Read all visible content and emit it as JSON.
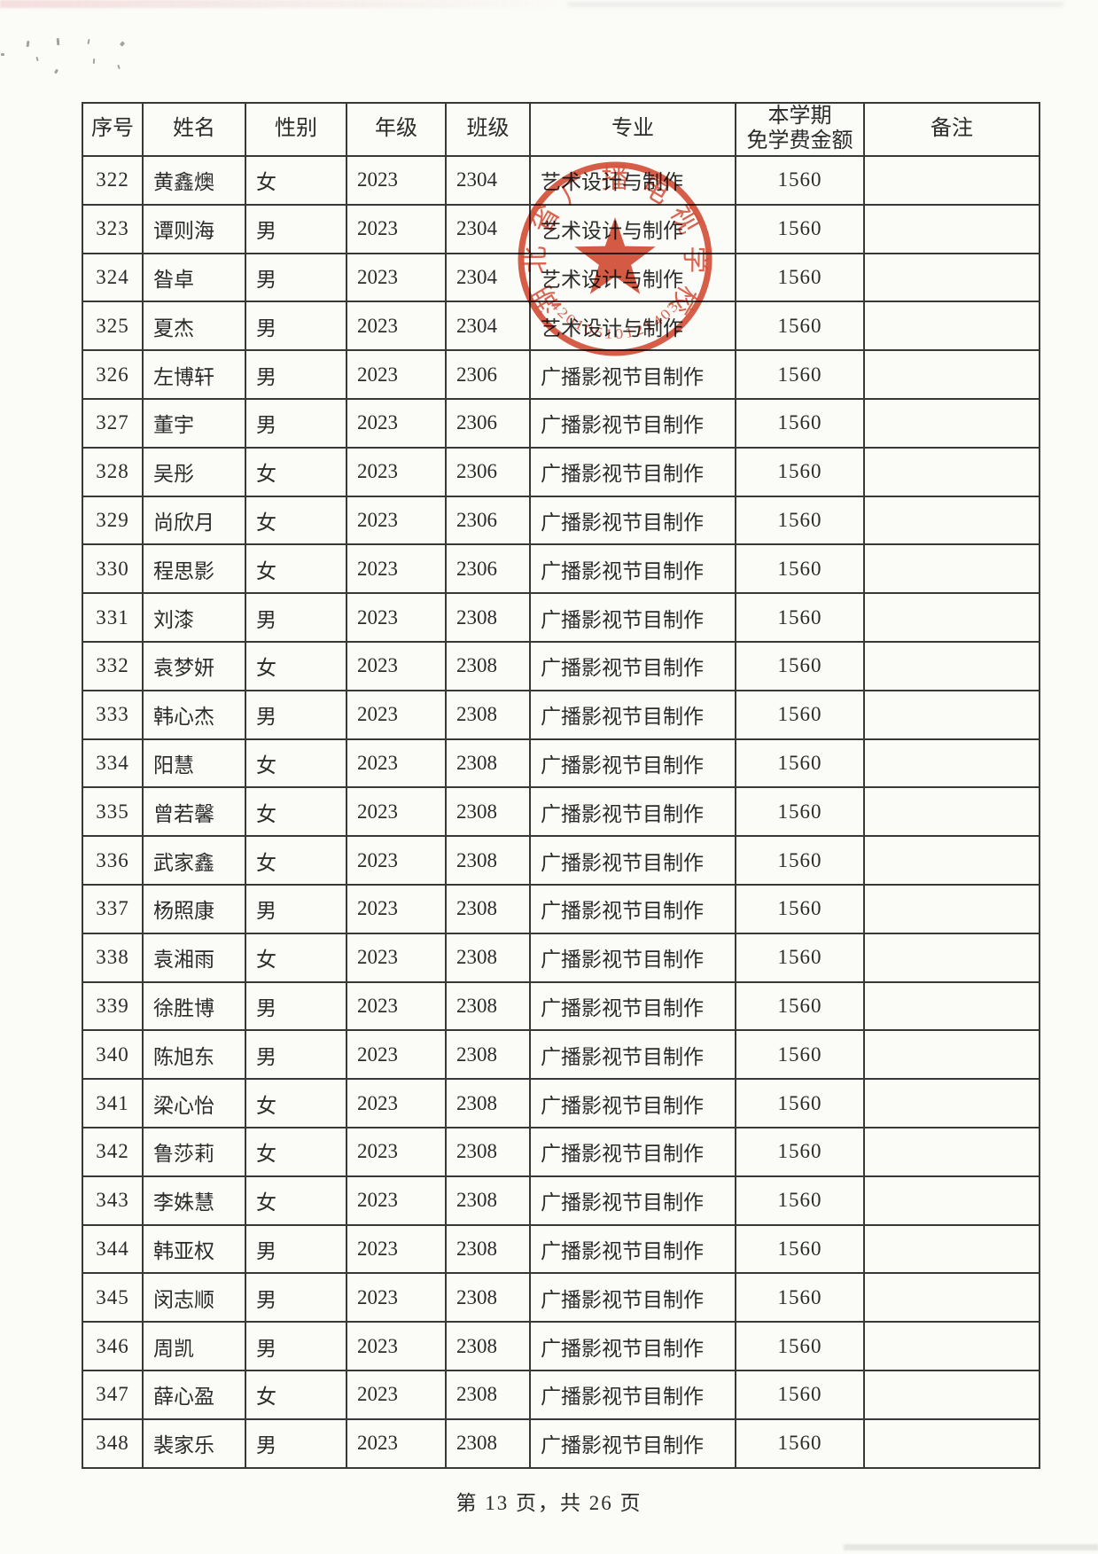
{
  "page": {
    "footer": "第 13 页，共 26 页"
  },
  "table": {
    "columns": {
      "no": "序号",
      "name": "姓名",
      "gender": "性别",
      "grade": "年级",
      "class": "班级",
      "major": "专业",
      "amount_line1": "本学期",
      "amount_line2": "免学费金额",
      "remark": "备注"
    },
    "rows": [
      {
        "no": "322",
        "name": "黄鑫燠",
        "gender": "女",
        "grade": "2023",
        "class": "2304",
        "major": "艺术设计与制作",
        "amount": "1560",
        "remark": ""
      },
      {
        "no": "323",
        "name": "谭则海",
        "gender": "男",
        "grade": "2023",
        "class": "2304",
        "major": "艺术设计与制作",
        "amount": "1560",
        "remark": ""
      },
      {
        "no": "324",
        "name": "昝卓",
        "gender": "男",
        "grade": "2023",
        "class": "2304",
        "major": "艺术设计与制作",
        "amount": "1560",
        "remark": ""
      },
      {
        "no": "325",
        "name": "夏杰",
        "gender": "男",
        "grade": "2023",
        "class": "2304",
        "major": "艺术设计与制作",
        "amount": "1560",
        "remark": ""
      },
      {
        "no": "326",
        "name": "左博轩",
        "gender": "男",
        "grade": "2023",
        "class": "2306",
        "major": "广播影视节目制作",
        "amount": "1560",
        "remark": ""
      },
      {
        "no": "327",
        "name": "董宇",
        "gender": "男",
        "grade": "2023",
        "class": "2306",
        "major": "广播影视节目制作",
        "amount": "1560",
        "remark": ""
      },
      {
        "no": "328",
        "name": "吴彤",
        "gender": "女",
        "grade": "2023",
        "class": "2306",
        "major": "广播影视节目制作",
        "amount": "1560",
        "remark": ""
      },
      {
        "no": "329",
        "name": "尚欣月",
        "gender": "女",
        "grade": "2023",
        "class": "2306",
        "major": "广播影视节目制作",
        "amount": "1560",
        "remark": ""
      },
      {
        "no": "330",
        "name": "程思影",
        "gender": "女",
        "grade": "2023",
        "class": "2306",
        "major": "广播影视节目制作",
        "amount": "1560",
        "remark": ""
      },
      {
        "no": "331",
        "name": "刘漆",
        "gender": "男",
        "grade": "2023",
        "class": "2308",
        "major": "广播影视节目制作",
        "amount": "1560",
        "remark": ""
      },
      {
        "no": "332",
        "name": "袁梦妍",
        "gender": "女",
        "grade": "2023",
        "class": "2308",
        "major": "广播影视节目制作",
        "amount": "1560",
        "remark": ""
      },
      {
        "no": "333",
        "name": "韩心杰",
        "gender": "男",
        "grade": "2023",
        "class": "2308",
        "major": "广播影视节目制作",
        "amount": "1560",
        "remark": ""
      },
      {
        "no": "334",
        "name": "阳慧",
        "gender": "女",
        "grade": "2023",
        "class": "2308",
        "major": "广播影视节目制作",
        "amount": "1560",
        "remark": ""
      },
      {
        "no": "335",
        "name": "曾若馨",
        "gender": "女",
        "grade": "2023",
        "class": "2308",
        "major": "广播影视节目制作",
        "amount": "1560",
        "remark": ""
      },
      {
        "no": "336",
        "name": "武家鑫",
        "gender": "女",
        "grade": "2023",
        "class": "2308",
        "major": "广播影视节目制作",
        "amount": "1560",
        "remark": ""
      },
      {
        "no": "337",
        "name": "杨照康",
        "gender": "男",
        "grade": "2023",
        "class": "2308",
        "major": "广播影视节目制作",
        "amount": "1560",
        "remark": ""
      },
      {
        "no": "338",
        "name": "袁湘雨",
        "gender": "女",
        "grade": "2023",
        "class": "2308",
        "major": "广播影视节目制作",
        "amount": "1560",
        "remark": ""
      },
      {
        "no": "339",
        "name": "徐胜博",
        "gender": "男",
        "grade": "2023",
        "class": "2308",
        "major": "广播影视节目制作",
        "amount": "1560",
        "remark": ""
      },
      {
        "no": "340",
        "name": "陈旭东",
        "gender": "男",
        "grade": "2023",
        "class": "2308",
        "major": "广播影视节目制作",
        "amount": "1560",
        "remark": ""
      },
      {
        "no": "341",
        "name": "梁心怡",
        "gender": "女",
        "grade": "2023",
        "class": "2308",
        "major": "广播影视节目制作",
        "amount": "1560",
        "remark": ""
      },
      {
        "no": "342",
        "name": "鲁莎莉",
        "gender": "女",
        "grade": "2023",
        "class": "2308",
        "major": "广播影视节目制作",
        "amount": "1560",
        "remark": ""
      },
      {
        "no": "343",
        "name": "李姝慧",
        "gender": "女",
        "grade": "2023",
        "class": "2308",
        "major": "广播影视节目制作",
        "amount": "1560",
        "remark": ""
      },
      {
        "no": "344",
        "name": "韩亚权",
        "gender": "男",
        "grade": "2023",
        "class": "2308",
        "major": "广播影视节目制作",
        "amount": "1560",
        "remark": ""
      },
      {
        "no": "345",
        "name": "闵志顺",
        "gender": "男",
        "grade": "2023",
        "class": "2308",
        "major": "广播影视节目制作",
        "amount": "1560",
        "remark": ""
      },
      {
        "no": "346",
        "name": "周凯",
        "gender": "男",
        "grade": "2023",
        "class": "2308",
        "major": "广播影视节目制作",
        "amount": "1560",
        "remark": ""
      },
      {
        "no": "347",
        "name": "薛心盈",
        "gender": "女",
        "grade": "2023",
        "class": "2308",
        "major": "广播影视节目制作",
        "amount": "1560",
        "remark": ""
      },
      {
        "no": "348",
        "name": "裴家乐",
        "gender": "男",
        "grade": "2023",
        "class": "2308",
        "major": "广播影视节目制作",
        "amount": "1560",
        "remark": ""
      }
    ]
  },
  "seal": {
    "ring_text": "湖北省广播电视学校",
    "serial": "42010510121403",
    "color": "#d4432a"
  }
}
